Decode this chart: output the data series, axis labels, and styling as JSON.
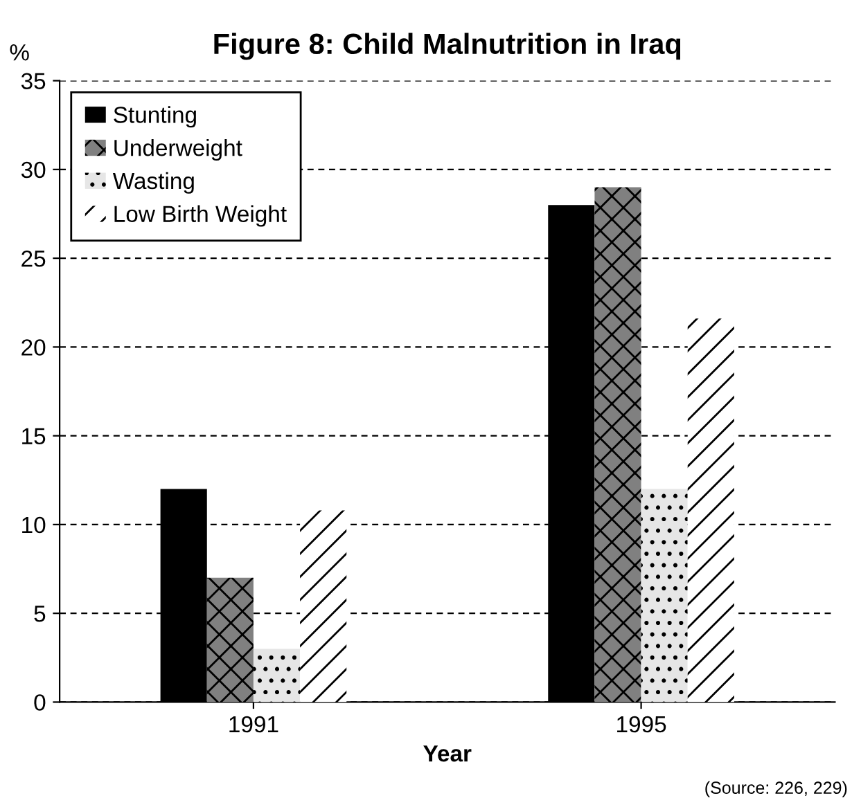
{
  "chart_data": {
    "type": "bar",
    "title": "Figure 8: Child Malnutrition in Iraq",
    "xlabel": "Year",
    "ylabel": "%",
    "categories": [
      "1991",
      "1995"
    ],
    "series": [
      {
        "name": "Stunting",
        "color": "#000000",
        "values": [
          12,
          28
        ]
      },
      {
        "name": "Underweight",
        "color": "#808080",
        "values": [
          7,
          29
        ]
      },
      {
        "name": "Wasting",
        "color": "#e6e6e6",
        "values": [
          3,
          12
        ]
      },
      {
        "name": "Low Birth Weight",
        "color": "#ffffff",
        "values": [
          10.8,
          21.6
        ]
      }
    ],
    "ylim": [
      0,
      35
    ],
    "yticks": [
      0,
      5,
      10,
      15,
      20,
      25,
      30,
      35
    ],
    "grid": "y",
    "legend": "top left",
    "annotations": [
      "(Source: 226, 229)"
    ]
  }
}
